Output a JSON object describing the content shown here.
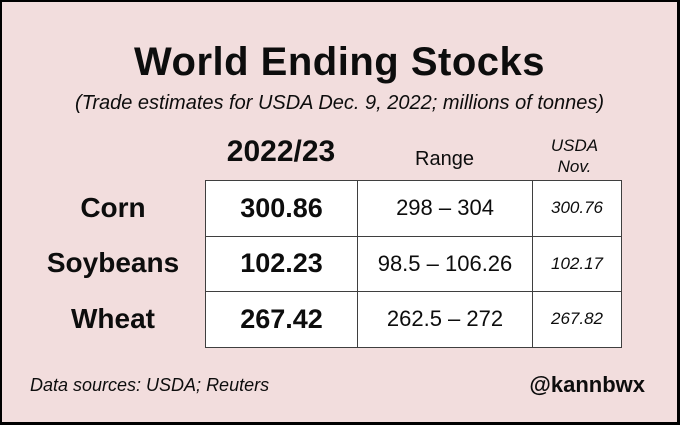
{
  "header": {
    "title": "World Ending Stocks",
    "subtitle": "(Trade estimates for USDA Dec. 9, 2022; millions of tonnes)"
  },
  "table": {
    "headers": {
      "estimate": "2022/23",
      "range": "Range",
      "usda_line1": "USDA",
      "usda_line2": "Nov."
    },
    "rows": [
      {
        "label": "Corn",
        "estimate": "300.86",
        "range": "298 – 304",
        "usda_nov": "300.76"
      },
      {
        "label": "Soybeans",
        "estimate": "102.23",
        "range": "98.5 – 106.26",
        "usda_nov": "102.17"
      },
      {
        "label": "Wheat",
        "estimate": "267.42",
        "range": "262.5 – 272",
        "usda_nov": "267.82"
      }
    ]
  },
  "footer": {
    "source": "Data sources: USDA; Reuters",
    "credit": "@kannbwx"
  },
  "colors": {
    "background": "#f2dddd",
    "cell_white": "#ffffff",
    "cell_usda": "#f9eeee",
    "frame_border": "#000000",
    "table_border": "#3f3f3f",
    "text": "#0d0d0d"
  },
  "chart_data": {
    "type": "table",
    "title": "World Ending Stocks",
    "subtitle": "(Trade estimates for USDA Dec. 9, 2022; millions of tonnes)",
    "units": "millions of tonnes",
    "columns": [
      "Commodity",
      "2022/23",
      "Range",
      "USDA Nov."
    ],
    "rows": [
      [
        "Corn",
        300.86,
        "298 – 304",
        300.76
      ],
      [
        "Soybeans",
        102.23,
        "98.5 – 106.26",
        102.17
      ],
      [
        "Wheat",
        267.42,
        "262.5 – 272",
        267.82
      ]
    ],
    "ranges": {
      "Corn": [
        298,
        304
      ],
      "Soybeans": [
        98.5,
        106.26
      ],
      "Wheat": [
        262.5,
        272
      ]
    },
    "source": "Data sources: USDA; Reuters",
    "credit": "@kannbwx"
  }
}
